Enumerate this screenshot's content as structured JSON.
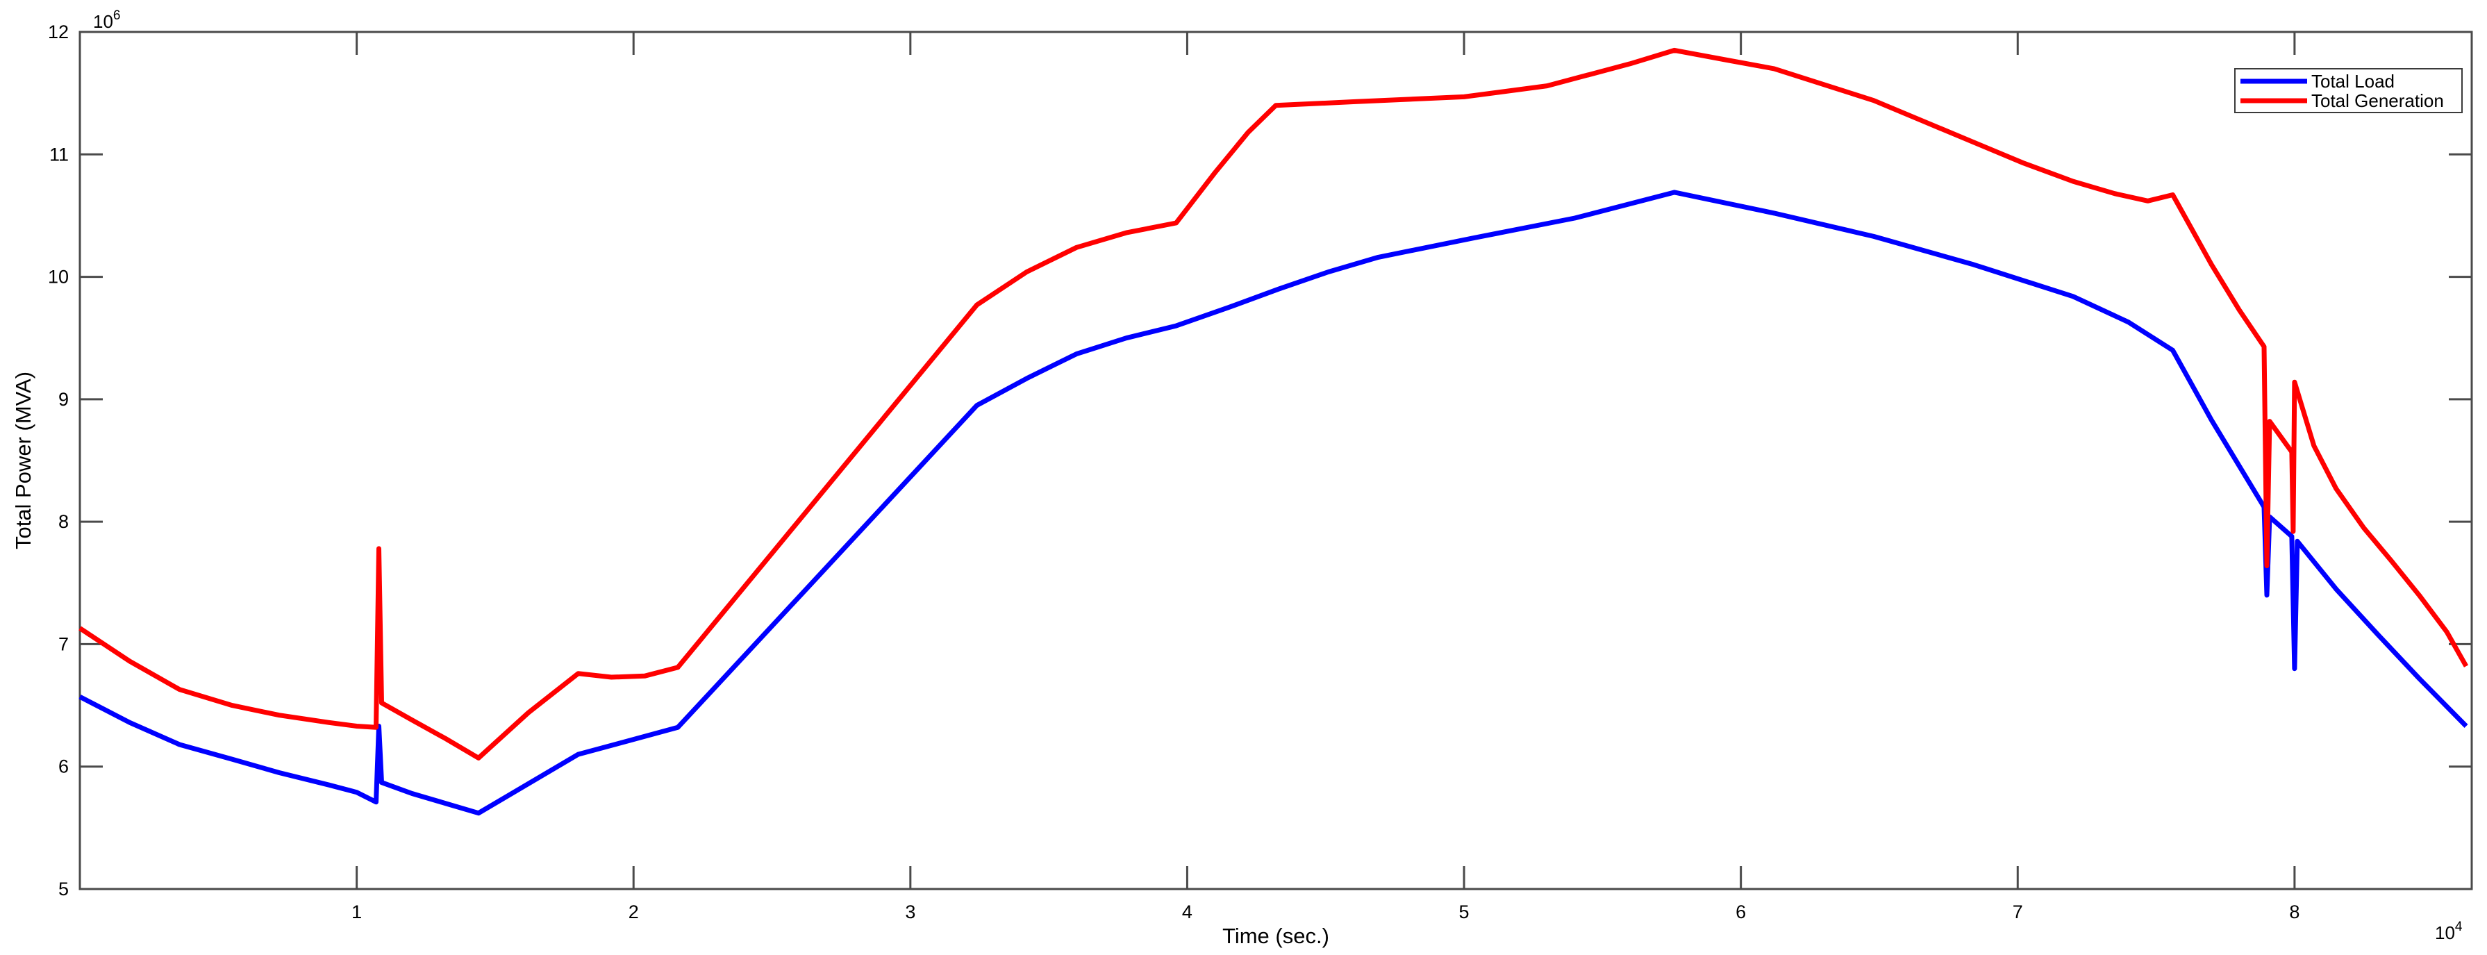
{
  "figure": {
    "background": "#ffffff",
    "axis_color": "#4a4a4a",
    "text_color": "#000000"
  },
  "chart_data": {
    "type": "line",
    "title": "",
    "xlabel": "Time (sec.)",
    "ylabel": "Total Power (MVA)",
    "x_axis_multiplier_base": "10",
    "x_axis_multiplier_exponent": "4",
    "y_axis_multiplier_base": "10",
    "y_axis_multiplier_exponent": "6",
    "xlim": [
      0,
      8.64
    ],
    "ylim": [
      5,
      12
    ],
    "x_ticks": [
      1,
      2,
      3,
      4,
      5,
      6,
      7,
      8
    ],
    "y_ticks": [
      5,
      6,
      7,
      8,
      9,
      10,
      11,
      12
    ],
    "x_units_note": "x values in 10^4 seconds",
    "y_units_note": "y values in 10^6 MVA",
    "grid": false,
    "legend": {
      "position": "top-right",
      "border_color": "#3a3a3a",
      "background": "#ffffff"
    },
    "series": [
      {
        "name": "Total Load",
        "color": "#0000ff",
        "points": [
          [
            0.0,
            6.57
          ],
          [
            0.18,
            6.36
          ],
          [
            0.36,
            6.18
          ],
          [
            0.55,
            6.06
          ],
          [
            0.72,
            5.95
          ],
          [
            0.9,
            5.85
          ],
          [
            1.0,
            5.79
          ],
          [
            1.07,
            5.71
          ],
          [
            1.08,
            6.33
          ],
          [
            1.09,
            5.87
          ],
          [
            1.2,
            5.78
          ],
          [
            1.32,
            5.7
          ],
          [
            1.44,
            5.62
          ],
          [
            1.62,
            5.86
          ],
          [
            1.8,
            6.1
          ],
          [
            1.98,
            6.21
          ],
          [
            2.16,
            6.32
          ],
          [
            3.24,
            8.95
          ],
          [
            3.42,
            9.17
          ],
          [
            3.6,
            9.37
          ],
          [
            3.78,
            9.5
          ],
          [
            3.96,
            9.6
          ],
          [
            4.15,
            9.75
          ],
          [
            4.33,
            9.9
          ],
          [
            4.51,
            10.04
          ],
          [
            4.69,
            10.16
          ],
          [
            5.04,
            10.32
          ],
          [
            5.4,
            10.48
          ],
          [
            5.76,
            10.69
          ],
          [
            6.12,
            10.52
          ],
          [
            6.48,
            10.33
          ],
          [
            6.84,
            10.1
          ],
          [
            7.2,
            9.84
          ],
          [
            7.4,
            9.63
          ],
          [
            7.56,
            9.4
          ],
          [
            7.7,
            8.83
          ],
          [
            7.89,
            8.12
          ],
          [
            7.9,
            7.4
          ],
          [
            7.91,
            8.04
          ],
          [
            7.99,
            7.88
          ],
          [
            8.0,
            6.8
          ],
          [
            8.01,
            7.84
          ],
          [
            8.15,
            7.45
          ],
          [
            8.3,
            7.08
          ],
          [
            8.45,
            6.72
          ],
          [
            8.62,
            6.33
          ]
        ]
      },
      {
        "name": "Total Generation",
        "color": "#ff0000",
        "points": [
          [
            0.0,
            7.13
          ],
          [
            0.18,
            6.86
          ],
          [
            0.36,
            6.63
          ],
          [
            0.55,
            6.5
          ],
          [
            0.72,
            6.42
          ],
          [
            0.9,
            6.36
          ],
          [
            1.0,
            6.33
          ],
          [
            1.07,
            6.32
          ],
          [
            1.08,
            7.78
          ],
          [
            1.09,
            6.52
          ],
          [
            1.2,
            6.38
          ],
          [
            1.32,
            6.23
          ],
          [
            1.44,
            6.07
          ],
          [
            1.62,
            6.44
          ],
          [
            1.8,
            6.76
          ],
          [
            1.92,
            6.73
          ],
          [
            2.04,
            6.74
          ],
          [
            2.16,
            6.81
          ],
          [
            3.24,
            9.77
          ],
          [
            3.42,
            10.04
          ],
          [
            3.6,
            10.24
          ],
          [
            3.78,
            10.36
          ],
          [
            3.96,
            10.44
          ],
          [
            4.1,
            10.85
          ],
          [
            4.22,
            11.18
          ],
          [
            4.32,
            11.4
          ],
          [
            4.6,
            11.43
          ],
          [
            5.0,
            11.47
          ],
          [
            5.3,
            11.56
          ],
          [
            5.6,
            11.74
          ],
          [
            5.76,
            11.85
          ],
          [
            5.95,
            11.77
          ],
          [
            6.12,
            11.7
          ],
          [
            6.3,
            11.57
          ],
          [
            6.48,
            11.44
          ],
          [
            6.66,
            11.27
          ],
          [
            6.84,
            11.1
          ],
          [
            7.02,
            10.93
          ],
          [
            7.2,
            10.78
          ],
          [
            7.35,
            10.68
          ],
          [
            7.47,
            10.62
          ],
          [
            7.56,
            10.67
          ],
          [
            7.7,
            10.1
          ],
          [
            7.8,
            9.73
          ],
          [
            7.89,
            9.43
          ],
          [
            7.9,
            7.64
          ],
          [
            7.91,
            8.82
          ],
          [
            7.99,
            8.57
          ],
          [
            7.995,
            7.92
          ],
          [
            8.0,
            9.14
          ],
          [
            8.07,
            8.62
          ],
          [
            8.15,
            8.27
          ],
          [
            8.25,
            7.95
          ],
          [
            8.35,
            7.68
          ],
          [
            8.45,
            7.4
          ],
          [
            8.55,
            7.1
          ],
          [
            8.62,
            6.82
          ]
        ]
      }
    ]
  }
}
